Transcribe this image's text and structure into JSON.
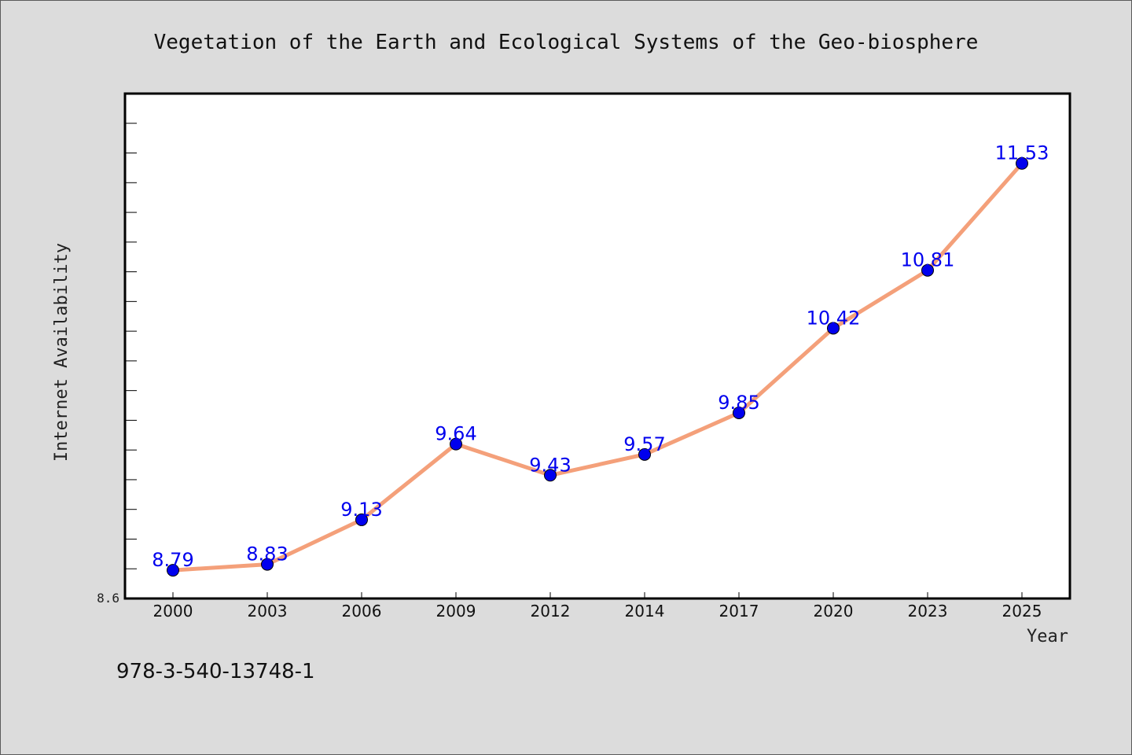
{
  "chart_data": {
    "type": "line",
    "title": "Vegetation of the Earth and Ecological Systems of the Geo-biosphere",
    "xlabel": "Year",
    "ylabel": "Internet Availability",
    "categories": [
      "2000",
      "2003",
      "2006",
      "2009",
      "2012",
      "2014",
      "2017",
      "2020",
      "2023",
      "2025"
    ],
    "series": [
      {
        "values": [
          8.79,
          8.83,
          9.13,
          9.64,
          9.43,
          9.57,
          9.85,
          10.42,
          10.81,
          11.53
        ]
      }
    ],
    "data_labels": [
      "8.79",
      "8.83",
      "9.13",
      "9.64",
      "9.43",
      "9.57",
      "9.85",
      "10.42",
      "10.81",
      "11.53"
    ],
    "ylim": [
      8.6,
      12.0
    ],
    "ytick_labels": [
      "8.6"
    ],
    "grid": false,
    "legend": "none",
    "colors": {
      "line": "#f4a07a",
      "marker": "#0000ee",
      "label": "#0000ee",
      "frame": "#000000",
      "background": "#dcdcdc",
      "plot_background": "#ffffff"
    }
  },
  "footer": {
    "text": "978-3-540-13748-1"
  }
}
